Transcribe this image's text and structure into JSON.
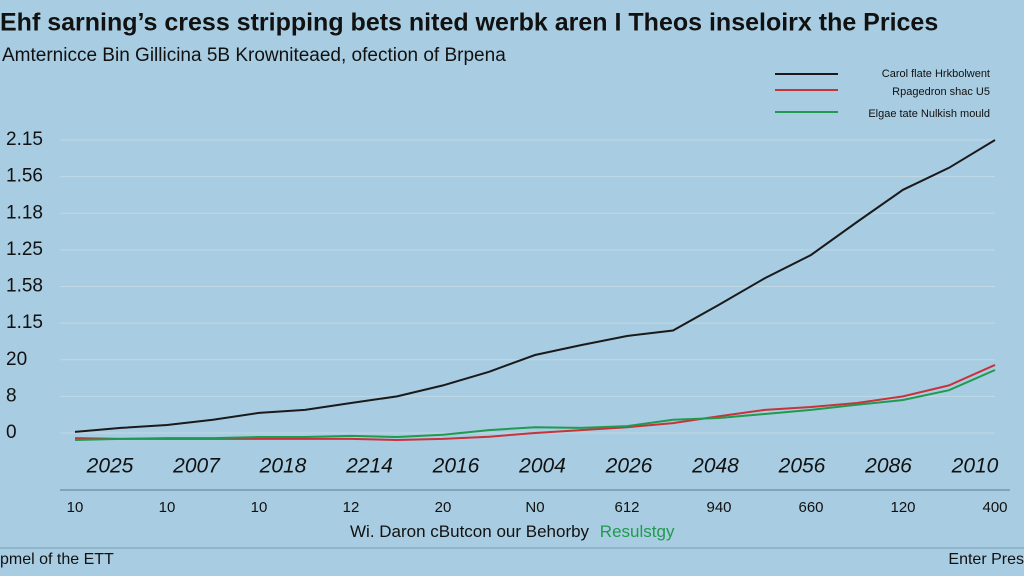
{
  "chart_data": {
    "type": "line",
    "title": "Ehf sarning’s cress stripping bets nited werbk aren I Theos inseloirx the Prices",
    "subtitle": "Amternicce Bin Gillicina 5B Krowniteaed, ofection of Brpena",
    "categories": [
      "2025",
      null,
      "2007",
      null,
      "2018",
      null,
      "2214",
      null,
      "2016",
      null,
      "2004",
      null,
      "2026",
      null,
      "2048",
      null,
      "2056",
      null,
      "2086",
      null,
      "2010"
    ],
    "x_labels_2": [
      "10",
      null,
      "10",
      null,
      "10",
      null,
      "12",
      null,
      "20",
      null,
      "N0",
      null,
      "612",
      null,
      "940",
      null,
      "660",
      null,
      "120",
      null,
      "400"
    ],
    "ylim": [
      -0.3,
      8
    ],
    "yticks": [
      {
        "value": 8,
        "label": "2.15"
      },
      {
        "value": 7,
        "label": "1.56"
      },
      {
        "value": 6,
        "label": "1.18"
      },
      {
        "value": 5,
        "label": "1.25"
      },
      {
        "value": 4,
        "label": "1.58"
      },
      {
        "value": 3,
        "label": "1.15"
      },
      {
        "value": 2,
        "label": "20"
      },
      {
        "value": 1,
        "label": "8"
      },
      0
    ],
    "grid": true,
    "legend": "top-right",
    "series": [
      {
        "name": "Carol flate Hrkbolwent",
        "color": "#1a1a1a",
        "values": [
          0.03,
          0.14,
          0.22,
          0.36,
          0.55,
          0.63,
          0.82,
          1.0,
          1.3,
          1.67,
          2.13,
          2.4,
          2.65,
          2.8,
          3.5,
          4.23,
          4.86,
          5.76,
          6.64,
          7.24,
          8.0
        ]
      },
      {
        "name": "Rpagedron shac U5",
        "color": "#c8333a",
        "values": [
          -0.14,
          -0.16,
          -0.16,
          -0.16,
          -0.16,
          -0.16,
          -0.16,
          -0.19,
          -0.16,
          -0.1,
          0,
          0.08,
          0.16,
          0.27,
          0.46,
          0.63,
          0.71,
          0.82,
          1.0,
          1.3,
          1.86
        ]
      },
      {
        "name": "Elgae tate Nulkish mould",
        "color": "#1f9a4e",
        "values": [
          -0.19,
          -0.16,
          -0.14,
          -0.14,
          -0.11,
          -0.11,
          -0.08,
          -0.11,
          -0.05,
          0.08,
          0.16,
          0.14,
          0.19,
          0.36,
          0.41,
          0.52,
          0.63,
          0.77,
          0.9,
          1.17,
          1.72
        ]
      }
    ],
    "footer_center": "Wi. Daron cButcon our Behorby",
    "footer_center_highlight": "Resulstgy",
    "footer_left": "pmel of the ETT",
    "footer_right": "Enter Pres"
  }
}
